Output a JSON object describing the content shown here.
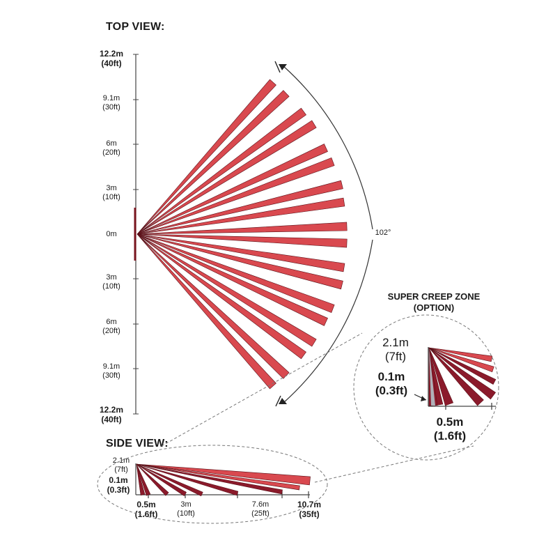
{
  "top_view": {
    "title": "TOP VIEW:",
    "angle_label": "102°",
    "axis_labels": [
      {
        "value": "12.2m\n(40ft)",
        "bold": true
      },
      {
        "value": "9.1m\n(30ft)",
        "bold": false
      },
      {
        "value": "6m\n(20ft)",
        "bold": false
      },
      {
        "value": "3m\n(10ft)",
        "bold": false
      },
      {
        "value": "0m",
        "bold": false
      },
      {
        "value": "3m\n(10ft)",
        "bold": false
      },
      {
        "value": "6m\n(20ft)",
        "bold": false
      },
      {
        "value": "9.1m\n(30ft)",
        "bold": false
      },
      {
        "value": "12.2m\n(40ft)",
        "bold": true
      }
    ]
  },
  "side_view": {
    "title": "SIDE VIEW:",
    "height_label": "2.1m\n(7ft)",
    "creep_label": "0.1m\n(0.3ft)",
    "distance_labels": [
      {
        "value": "0.5m\n(1.6ft)",
        "bold": true
      },
      {
        "value": "3m\n(10ft)",
        "bold": false
      },
      {
        "value": "7.6m\n(25ft)",
        "bold": false
      },
      {
        "value": "10.7m\n(35ft)",
        "bold": true
      }
    ]
  },
  "creep_zone": {
    "title": "SUPER CREEP ZONE\n(OPTION)",
    "height_label": "2.1m\n(7ft)",
    "creep_label": "0.1m\n(0.3ft)",
    "distance_label": "0.5m\n(1.6ft)"
  },
  "colors": {
    "beam_fill": "#d9494f",
    "beam_dark": "#8b1a2b",
    "beam_stroke": "#5a1018",
    "line": "#333333"
  }
}
